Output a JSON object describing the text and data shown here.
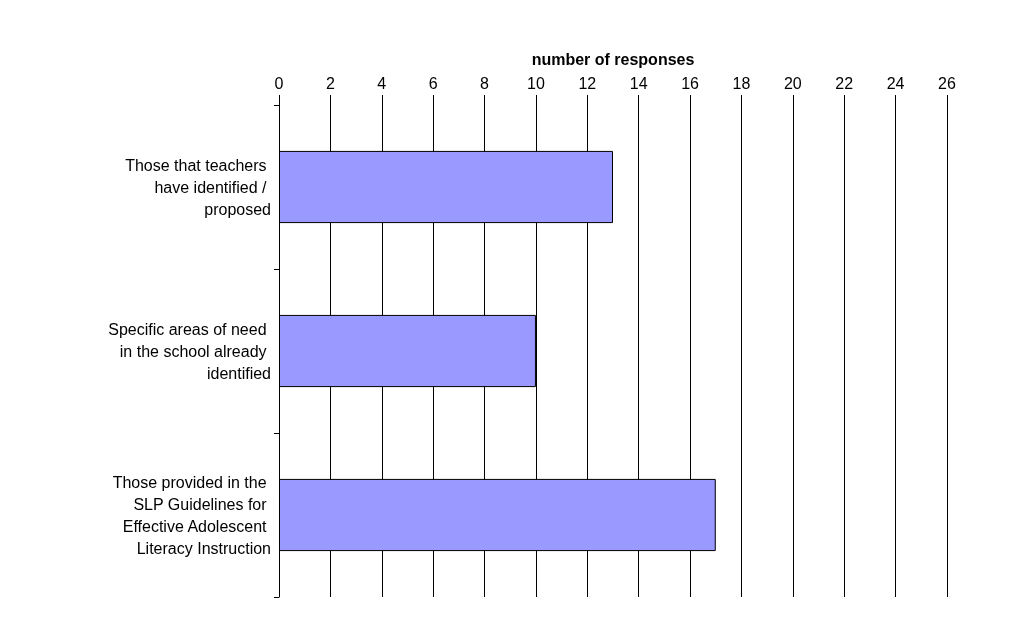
{
  "chart_data": {
    "type": "bar",
    "orientation": "horizontal",
    "xlabel": "number of responses",
    "categories": [
      "Those that teachers have identified / proposed",
      "Specific areas of need in the school already identified",
      "Those provided in the SLP Guidelines for Effective Adolescent Literacy Instruction"
    ],
    "values": [
      13,
      10,
      17
    ],
    "color": "#9999ff",
    "xlim": [
      0,
      26
    ],
    "xticks": [
      0,
      2,
      4,
      6,
      8,
      10,
      12,
      14,
      16,
      18,
      20,
      22,
      24,
      26
    ],
    "grid": "x"
  }
}
